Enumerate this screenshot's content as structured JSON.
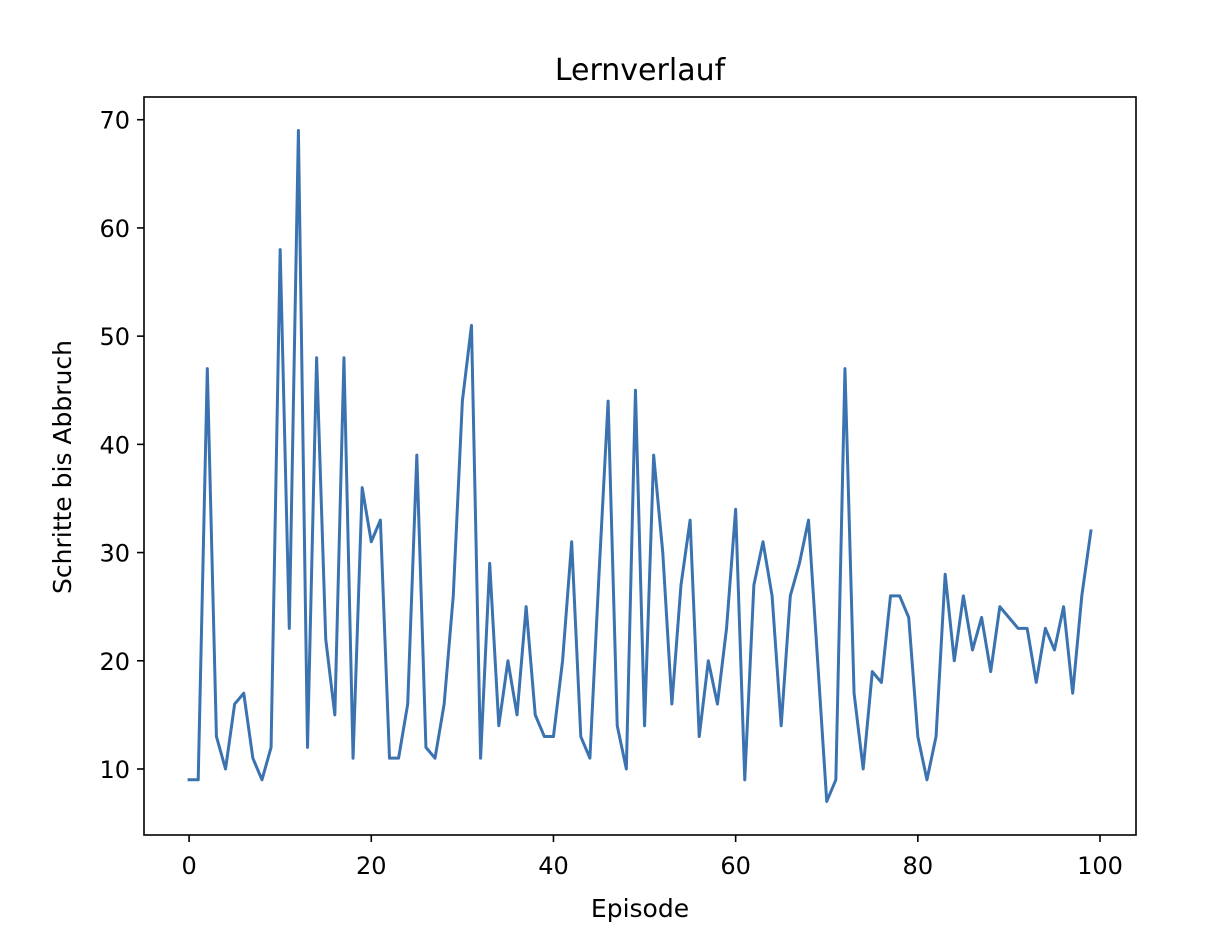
{
  "chart_data": {
    "type": "line",
    "title": "Lernverlauf",
    "xlabel": "Episode",
    "ylabel": "Schritte bis Abbruch",
    "xlim": [
      -4.95,
      103.95
    ],
    "ylim": [
      3.9,
      72.1
    ],
    "xticks": [
      0,
      20,
      40,
      60,
      80,
      100
    ],
    "yticks": [
      10,
      20,
      30,
      40,
      50,
      60,
      70
    ],
    "grid": false,
    "line_color": "#3a73b0",
    "series": [
      {
        "x": [
          0,
          1,
          2,
          3,
          4,
          5,
          6,
          7,
          8,
          9,
          10,
          11,
          12,
          13,
          14,
          15,
          16,
          17,
          18,
          19,
          20,
          21,
          22,
          23,
          24,
          25,
          26,
          27,
          28,
          29,
          30,
          31,
          32,
          33,
          34,
          35,
          36,
          37,
          38,
          39,
          40,
          41,
          42,
          43,
          44,
          45,
          46,
          47,
          48,
          49,
          50,
          51,
          52,
          53,
          54,
          55,
          56,
          57,
          58,
          59,
          60,
          61,
          62,
          63,
          64,
          65,
          66,
          67,
          68,
          69,
          70,
          71,
          72,
          73,
          74,
          75,
          76,
          77,
          78,
          79,
          80,
          81,
          82,
          83,
          84,
          85,
          86,
          87,
          88,
          89,
          90,
          91,
          92,
          93,
          94,
          95,
          96,
          97,
          98,
          99
        ],
        "values": [
          9,
          9,
          47,
          13,
          10,
          16,
          17,
          11,
          9,
          12,
          58,
          23,
          69,
          12,
          48,
          22,
          15,
          48,
          11,
          36,
          31,
          33,
          11,
          11,
          16,
          39,
          12,
          11,
          16,
          26,
          44,
          51,
          11,
          29,
          14,
          20,
          15,
          25,
          15,
          13,
          13,
          20,
          31,
          13,
          11,
          28,
          44,
          14,
          10,
          45,
          14,
          39,
          30,
          16,
          27,
          33,
          13,
          20,
          16,
          23,
          34,
          9,
          27,
          31,
          26,
          14,
          26,
          29,
          33,
          20,
          7,
          9,
          47,
          17,
          10,
          19,
          18,
          26,
          26,
          24,
          13,
          9,
          13,
          28,
          20,
          26,
          21,
          24,
          19,
          25,
          24,
          23,
          23,
          18,
          23,
          21,
          25,
          17,
          26,
          32
        ]
      }
    ]
  }
}
